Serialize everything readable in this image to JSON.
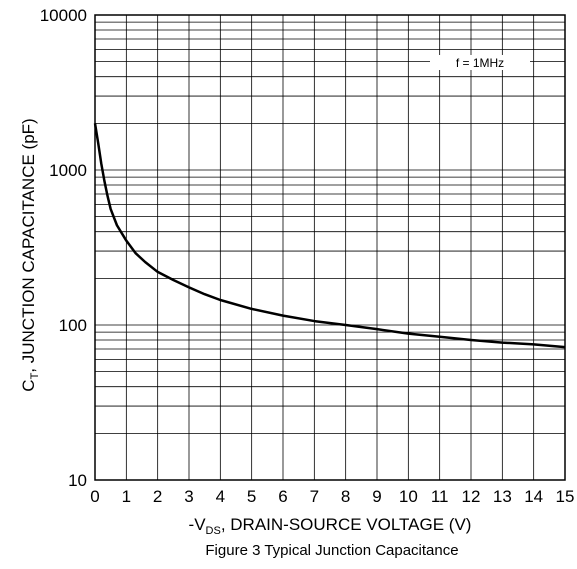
{
  "chart_data": {
    "type": "line",
    "title": "",
    "caption": "Figure 3 Typical Junction Capacitance",
    "xlabel": {
      "prefix": "-V",
      "subscript": "DS",
      "suffix": ", DRAIN-SOURCE VOLTAGE (V)"
    },
    "ylabel": {
      "prefix": "C",
      "subscript": "T",
      "suffix": ", JUNCTION CAPACITANCE (pF)"
    },
    "xlim": [
      0,
      15
    ],
    "ylim": [
      10,
      10000
    ],
    "yscale": "log",
    "grid": true,
    "xticks": [
      "0",
      "1",
      "2",
      "3",
      "4",
      "5",
      "6",
      "7",
      "8",
      "9",
      "10",
      "11",
      "12",
      "13",
      "14",
      "15"
    ],
    "yticks": [
      "10",
      "100",
      "1000",
      "10000"
    ],
    "annotation": "f = 1MHz",
    "series": [
      {
        "color": "#000000",
        "x": [
          0,
          0.1,
          0.2,
          0.3,
          0.4,
          0.5,
          0.7,
          1.0,
          1.3,
          1.6,
          2.0,
          2.5,
          3.0,
          3.5,
          4.0,
          5.0,
          6.0,
          7.0,
          8.0,
          9.0,
          10.0,
          11.0,
          12.0,
          13.0,
          14.0,
          15.0
        ],
        "y": [
          2000,
          1500,
          1100,
          850,
          680,
          560,
          440,
          350,
          290,
          255,
          220,
          195,
          175,
          158,
          145,
          127,
          115,
          106,
          100,
          94,
          88,
          84,
          80,
          77,
          75,
          72
        ]
      }
    ]
  }
}
